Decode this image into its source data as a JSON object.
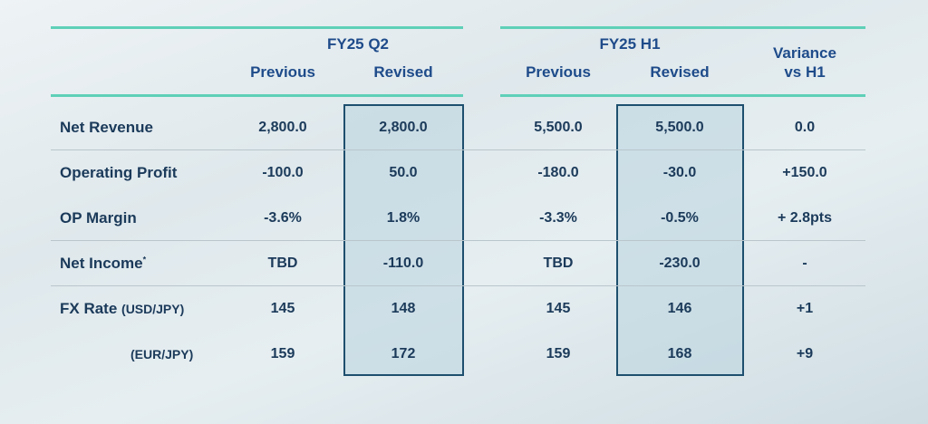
{
  "headers": {
    "group_q2": "FY25 Q2",
    "group_h1": "FY25 H1",
    "previous": "Previous",
    "revised": "Revised",
    "variance_line1": "Variance",
    "variance_line2": "vs H1"
  },
  "rows": [
    {
      "label": "Net Revenue",
      "q2_prev": "2,800.0",
      "q2_rev": "2,800.0",
      "h1_prev": "5,500.0",
      "h1_rev": "5,500.0",
      "variance": "0.0"
    },
    {
      "label": "Operating Profit",
      "q2_prev": "-100.0",
      "q2_rev": "50.0",
      "h1_prev": "-180.0",
      "h1_rev": "-30.0",
      "variance": "+150.0"
    },
    {
      "label": "OP Margin",
      "q2_prev": "-3.6%",
      "q2_rev": "1.8%",
      "h1_prev": "-3.3%",
      "h1_rev": "-0.5%",
      "variance": "+ 2.8pts"
    },
    {
      "label": "Net Income",
      "label_sup": "*",
      "q2_prev": "TBD",
      "q2_rev": "-110.0",
      "h1_prev": "TBD",
      "h1_rev": "-230.0",
      "variance": "-"
    },
    {
      "label": "FX Rate",
      "label_sub": "(USD/JPY)",
      "q2_prev": "145",
      "q2_rev": "148",
      "h1_prev": "145",
      "h1_rev": "146",
      "variance": "+1"
    },
    {
      "label_sub": "(EUR/JPY)",
      "q2_prev": "159",
      "q2_rev": "172",
      "h1_prev": "159",
      "h1_rev": "168",
      "variance": "+9"
    }
  ]
}
